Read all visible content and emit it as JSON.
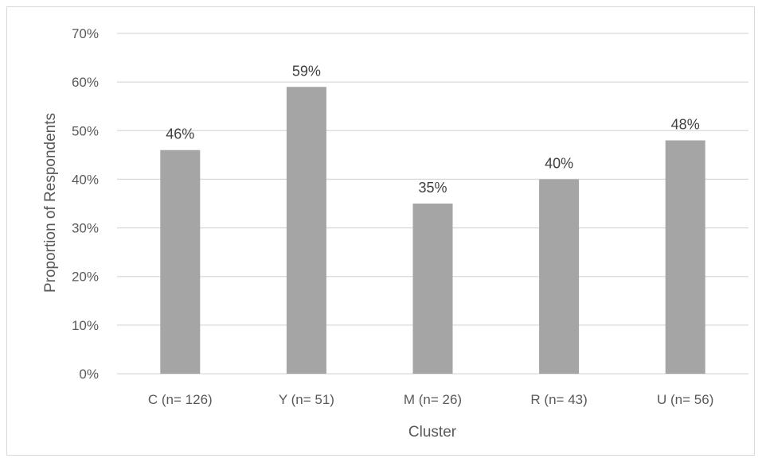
{
  "chart_data": {
    "type": "bar",
    "categories": [
      "C (n= 126)",
      "Y (n= 51)",
      "M (n= 26)",
      "R (n= 43)",
      "U (n= 56)"
    ],
    "values": [
      46,
      59,
      35,
      40,
      48
    ],
    "data_labels": [
      "46%",
      "59%",
      "35%",
      "40%",
      "48%"
    ],
    "ylim": [
      0,
      70
    ],
    "yticks": [
      0,
      10,
      20,
      30,
      40,
      50,
      60,
      70
    ],
    "ytick_labels": [
      "0%",
      "10%",
      "20%",
      "30%",
      "40%",
      "50%",
      "60%",
      "70%"
    ],
    "xlabel": "Cluster",
    "ylabel": "Proportion of Respondents",
    "grid": true,
    "legend": "none",
    "colors": {
      "bar": "#a5a5a5",
      "grid": "#d9d9d9",
      "text": "#595959"
    }
  }
}
